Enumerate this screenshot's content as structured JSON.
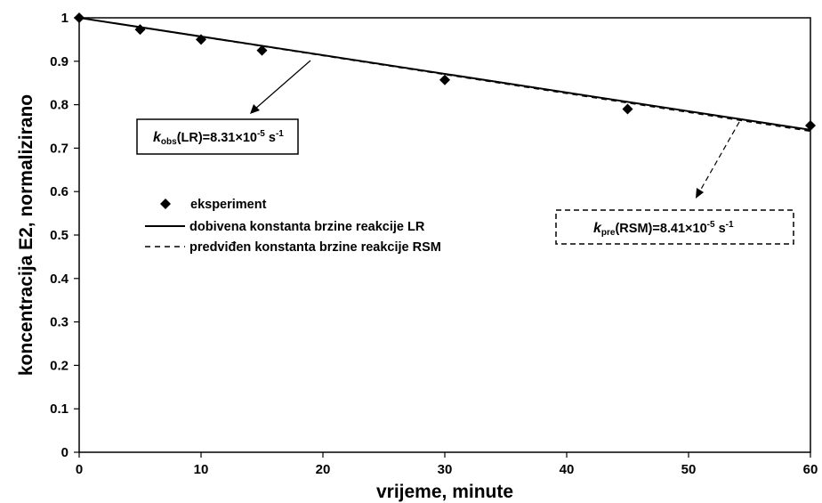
{
  "chart_data": {
    "type": "line",
    "xlabel": "vrijeme, minute",
    "ylabel": "koncentracija E2, normalizirano",
    "xlim": [
      0,
      60
    ],
    "ylim": [
      0,
      1
    ],
    "x_ticks": [
      "0",
      "10",
      "20",
      "30",
      "40",
      "50",
      "60"
    ],
    "y_ticks": [
      "0",
      "0.1",
      "0.2",
      "0.3",
      "0.4",
      "0.5",
      "0.6",
      "0.7",
      "0.8",
      "0.9",
      "1"
    ],
    "grid": false,
    "legend_position": "middle-left",
    "series": [
      {
        "name": "eksperiment",
        "style": "diamond-markers",
        "color": "#000000",
        "x": [
          0,
          5,
          10,
          15,
          30,
          45,
          60
        ],
        "y": [
          1.0,
          0.973,
          0.95,
          0.925,
          0.857,
          0.79,
          0.752
        ]
      },
      {
        "name": "dobivena konstanta brzine reakcije LR",
        "style": "solid",
        "color": "#000000",
        "x": [
          0,
          60
        ],
        "y": [
          1.0,
          0.742
        ]
      },
      {
        "name": "predviđen konstanta brzine reakcije RSM",
        "style": "dashed",
        "color": "#000000",
        "x": [
          0,
          60
        ],
        "y": [
          1.0,
          0.739
        ]
      }
    ],
    "annotations": [
      {
        "k_symbol": "k",
        "subscript": "obs",
        "text": "(LR)=8.31×10",
        "exponent": "-5",
        "unit": " s",
        "unit_exponent": "-1",
        "box_style": "solid"
      },
      {
        "k_symbol": "k",
        "subscript": "pre",
        "text": "(RSM)=8.41×10",
        "exponent": "-5",
        "unit": " s",
        "unit_exponent": "-1",
        "box_style": "dashed"
      }
    ]
  }
}
